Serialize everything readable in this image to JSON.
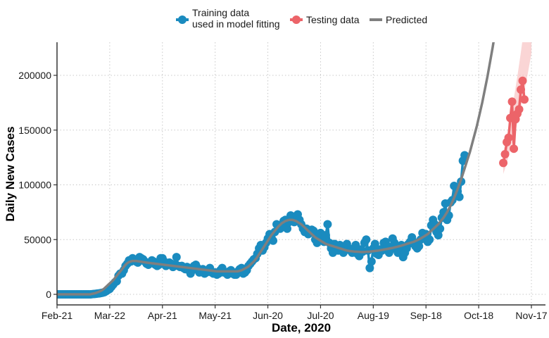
{
  "chart_data": {
    "type": "scatter",
    "title": "",
    "xlabel": "Date, 2020",
    "ylabel": "Daily New Cases",
    "x_ticks": [
      "Feb-21",
      "Mar-22",
      "Apr-21",
      "May-21",
      "Jun-20",
      "Jul-20",
      "Aug-19",
      "Sep-18",
      "Oct-18",
      "Nov-17"
    ],
    "x_tick_days": [
      0,
      30,
      60,
      90,
      120,
      150,
      180,
      210,
      240,
      270
    ],
    "x_range_days": [
      0,
      275
    ],
    "y_ticks": [
      0,
      50000,
      100000,
      150000,
      200000
    ],
    "y_tick_labels": [
      "0",
      "50000",
      "100000",
      "150000",
      "200000"
    ],
    "ylim": [
      -10000,
      230000
    ],
    "grid": true,
    "legend_position": "top",
    "legend": [
      {
        "key": "train",
        "label_lines": [
          "Training data",
          "used in model fitting"
        ],
        "color": "#1a8bbf",
        "marker": "point-line"
      },
      {
        "key": "test",
        "label_lines": [
          "Testing data"
        ],
        "color": "#ec6469",
        "marker": "point-line"
      },
      {
        "key": "pred",
        "label_lines": [
          "Predicted"
        ],
        "color": "#7f7f7f",
        "marker": "line"
      }
    ],
    "series": [
      {
        "name": "Training data used in model fitting",
        "color": "#1a8bbf",
        "start_day": 0,
        "values": [
          0,
          0,
          0,
          0,
          0,
          0,
          0,
          0,
          0,
          0,
          0,
          0,
          0,
          0,
          0,
          0,
          0,
          0,
          0,
          0,
          200,
          300,
          500,
          700,
          900,
          1200,
          1500,
          2000,
          3000,
          4000,
          5000,
          7000,
          9000,
          11000,
          12000,
          17000,
          19000,
          19000,
          22000,
          26000,
          28000,
          31000,
          30000,
          33000,
          31000,
          30000,
          29000,
          34000,
          33000,
          32000,
          30000,
          28000,
          27000,
          29000,
          31000,
          30000,
          27000,
          26000,
          27000,
          33000,
          33000,
          30000,
          26000,
          27000,
          29000,
          28000,
          25000,
          27000,
          34000,
          26000,
          25000,
          26000,
          24000,
          23000,
          25000,
          22000,
          19000,
          22000,
          26000,
          27000,
          24000,
          20000,
          21000,
          23000,
          19000,
          20000,
          21000,
          24000,
          20000,
          19000,
          20000,
          18000,
          19000,
          22000,
          24000,
          20000,
          20000,
          18000,
          21000,
          22000,
          19000,
          18000,
          18000,
          21000,
          23000,
          24000,
          19000,
          20000,
          22000,
          26000,
          28000,
          30000,
          32000,
          33000,
          37000,
          42000,
          45000,
          40000,
          43000,
          47000,
          51000,
          55000,
          52000,
          49000,
          57000,
          64000,
          62000,
          60000,
          63000,
          67000,
          68000,
          60000,
          66000,
          72000,
          71000,
          66000,
          71000,
          73000,
          68000,
          64000,
          60000,
          57000,
          60000,
          55000,
          56000,
          59000,
          58000,
          50000,
          47000,
          53000,
          56000,
          49000,
          48000,
          54000,
          64000,
          47000,
          42000,
          38000,
          46000,
          44000,
          40000,
          45000,
          41000,
          38000,
          44000,
          46000,
          42000,
          40000,
          38000,
          42000,
          45000,
          37000,
          35000,
          41000,
          39000,
          47000,
          50000,
          40000,
          24000,
          30000,
          42000,
          46000,
          37000,
          36000,
          41000,
          40000,
          47000,
          48000,
          44000,
          38000,
          41000,
          51000,
          47000,
          42000,
          38000,
          40000,
          45000,
          34000,
          38000,
          42000,
          46000,
          48000,
          52000,
          48000,
          44000,
          42000,
          44000,
          50000,
          56000,
          52000,
          55000,
          48000,
          50000,
          63000,
          68000,
          64000,
          57000,
          54000,
          60000,
          70000,
          75000,
          83000,
          68000,
          72000,
          84000,
          86000,
          99000,
          90000,
          94000,
          89000,
          103000,
          122000,
          127000
        ]
      },
      {
        "name": "Testing data",
        "color": "#ec6469",
        "start_day": 254,
        "values": [
          120000,
          128000,
          139000,
          143000,
          161000,
          176000,
          133000,
          160000,
          165000,
          169000,
          187000,
          195000,
          178000
        ]
      },
      {
        "name": "Predicted",
        "color": "#7f7f7f",
        "start_day": 0,
        "values": [
          0,
          0,
          0,
          0,
          0,
          0,
          0,
          0,
          0,
          0,
          0,
          0,
          0,
          0,
          0,
          0,
          0,
          0,
          0,
          0,
          500,
          800,
          1200,
          1800,
          2500,
          3200,
          4200,
          5500,
          7000,
          8500,
          10000,
          11500,
          13000,
          15000,
          17000,
          19000,
          21000,
          23000,
          25000,
          27000,
          28500,
          29500,
          30000,
          30500,
          30500,
          30500,
          30200,
          30000,
          29800,
          29500,
          29300,
          29000,
          28800,
          28600,
          28400,
          28200,
          28000,
          27800,
          27600,
          27400,
          27200,
          27000,
          26800,
          26600,
          26400,
          26200,
          26000,
          25800,
          25600,
          25400,
          25200,
          25000,
          24800,
          24600,
          24400,
          24200,
          24000,
          23800,
          23600,
          23400,
          23200,
          23000,
          22800,
          22600,
          22400,
          22200,
          22000,
          21800,
          21600,
          21400,
          21200,
          21000,
          21000,
          21000,
          21000,
          21000,
          21000,
          21000,
          21000,
          21000,
          21000,
          21000,
          21000,
          21000,
          21500,
          22000,
          22800,
          23600,
          24500,
          25500,
          27000,
          28500,
          30000,
          32000,
          34000,
          36500,
          39000,
          41500,
          44000,
          46500,
          49000,
          51500,
          54000,
          56000,
          58000,
          60000,
          62000,
          63500,
          65000,
          66000,
          67000,
          67500,
          68000,
          68000,
          68000,
          67500,
          67000,
          66000,
          65000,
          64000,
          62500,
          61000,
          59500,
          58000,
          56500,
          55000,
          53500,
          52000,
          51000,
          50000,
          49000,
          48000,
          47000,
          46000,
          45500,
          45000,
          44500,
          44000,
          43500,
          43000,
          42500,
          42000,
          41500,
          41000,
          40500,
          40000,
          39700,
          39500,
          39300,
          39100,
          39000,
          38900,
          38800,
          38700,
          38700,
          38700,
          38800,
          38900,
          39000,
          39200,
          39400,
          39600,
          39800,
          40000,
          40300,
          40600,
          40900,
          41200,
          41500,
          41800,
          42100,
          42400,
          42800,
          43200,
          43600,
          44000,
          44500,
          45000,
          45500,
          46000,
          46500,
          47000,
          47500,
          48000,
          48700,
          49400,
          50200,
          51000,
          52000,
          53000,
          54000,
          55000,
          56500,
          58000,
          59500,
          61000,
          62500,
          64000,
          66000,
          68000,
          70000,
          72500,
          75000,
          78000,
          81000,
          84500,
          88000,
          92000,
          96000,
          100500,
          105000,
          110000,
          115000,
          120000,
          125000,
          130000,
          136000,
          142000,
          148000,
          154000,
          161000,
          168000,
          175000,
          183000,
          191000,
          199000,
          208000,
          217000,
          226000,
          236000
        ]
      },
      {
        "name": "",
        "role": "prediction-interval",
        "start_day": 254,
        "lower": [
          110000,
          115000,
          120000,
          126000,
          132000,
          138000,
          144000,
          150000,
          157000,
          164000,
          171000,
          178000,
          186000,
          194000,
          202000,
          211000,
          220000
        ],
        "upper": [
          130000,
          137000,
          145000,
          153000,
          161000,
          170000,
          179000,
          189000,
          199000,
          210000,
          221000,
          233000,
          245000,
          258000,
          271000,
          285000,
          300000
        ]
      }
    ]
  }
}
